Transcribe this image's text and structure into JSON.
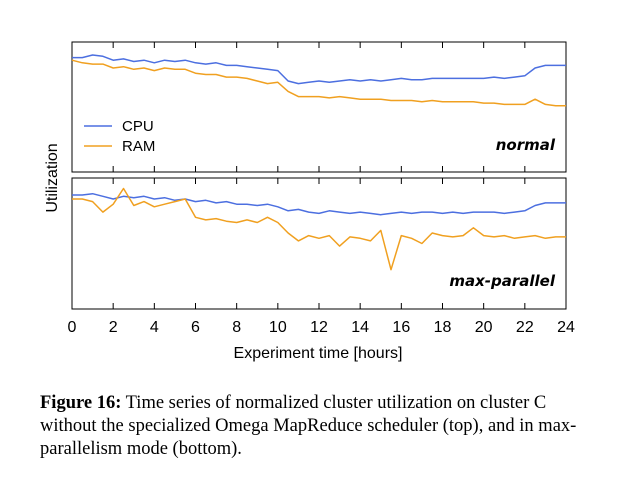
{
  "chart_data": {
    "type": "line",
    "x": [
      0,
      0.5,
      1,
      1.5,
      2,
      2.5,
      3,
      3.5,
      4,
      4.5,
      5,
      5.5,
      6,
      6.5,
      7,
      7.5,
      8,
      8.5,
      9,
      9.5,
      10,
      10.5,
      11,
      11.5,
      12,
      12.5,
      13,
      13.5,
      14,
      14.5,
      15,
      15.5,
      16,
      16.5,
      17,
      17.5,
      18,
      18.5,
      19,
      19.5,
      20,
      20.5,
      21,
      21.5,
      22,
      22.5,
      23,
      23.5,
      24
    ],
    "xlabel": "Experiment time [hours]",
    "ylabel": "Utilization",
    "xticks": [
      "0",
      "2",
      "4",
      "6",
      "8",
      "10",
      "12",
      "14",
      "16",
      "18",
      "20",
      "22",
      "24"
    ],
    "xlim": [
      0,
      24
    ],
    "ylim": [
      0,
      1
    ],
    "legend": {
      "location": "left",
      "entries": [
        "CPU",
        "RAM"
      ]
    },
    "colors": {
      "CPU": "#4c6fe0",
      "RAM": "#f0a020"
    },
    "panels": [
      {
        "label": "normal",
        "series": [
          {
            "name": "CPU",
            "values": [
              0.88,
              0.88,
              0.9,
              0.89,
              0.86,
              0.87,
              0.85,
              0.86,
              0.84,
              0.86,
              0.85,
              0.86,
              0.84,
              0.83,
              0.84,
              0.82,
              0.82,
              0.81,
              0.8,
              0.79,
              0.78,
              0.7,
              0.68,
              0.69,
              0.7,
              0.69,
              0.7,
              0.71,
              0.7,
              0.71,
              0.7,
              0.71,
              0.72,
              0.71,
              0.71,
              0.72,
              0.72,
              0.72,
              0.72,
              0.72,
              0.72,
              0.73,
              0.72,
              0.73,
              0.74,
              0.8,
              0.82,
              0.82,
              0.82
            ]
          },
          {
            "name": "RAM",
            "values": [
              0.86,
              0.84,
              0.83,
              0.83,
              0.8,
              0.81,
              0.79,
              0.8,
              0.78,
              0.8,
              0.79,
              0.79,
              0.76,
              0.75,
              0.75,
              0.73,
              0.73,
              0.72,
              0.7,
              0.68,
              0.69,
              0.62,
              0.58,
              0.58,
              0.58,
              0.57,
              0.58,
              0.57,
              0.56,
              0.56,
              0.56,
              0.55,
              0.55,
              0.55,
              0.54,
              0.55,
              0.54,
              0.54,
              0.54,
              0.54,
              0.53,
              0.53,
              0.52,
              0.52,
              0.52,
              0.56,
              0.52,
              0.51,
              0.51
            ]
          }
        ]
      },
      {
        "label": "max-parallel",
        "series": [
          {
            "name": "CPU",
            "values": [
              0.87,
              0.87,
              0.88,
              0.86,
              0.84,
              0.86,
              0.85,
              0.86,
              0.84,
              0.85,
              0.83,
              0.84,
              0.82,
              0.83,
              0.81,
              0.82,
              0.8,
              0.8,
              0.79,
              0.8,
              0.78,
              0.75,
              0.76,
              0.74,
              0.73,
              0.75,
              0.74,
              0.73,
              0.74,
              0.73,
              0.72,
              0.73,
              0.74,
              0.73,
              0.74,
              0.74,
              0.73,
              0.74,
              0.73,
              0.74,
              0.74,
              0.74,
              0.73,
              0.74,
              0.75,
              0.79,
              0.81,
              0.81,
              0.81
            ]
          },
          {
            "name": "RAM",
            "values": [
              0.84,
              0.84,
              0.82,
              0.74,
              0.8,
              0.92,
              0.79,
              0.82,
              0.78,
              0.8,
              0.82,
              0.84,
              0.7,
              0.68,
              0.69,
              0.67,
              0.66,
              0.68,
              0.66,
              0.7,
              0.66,
              0.58,
              0.52,
              0.56,
              0.54,
              0.56,
              0.48,
              0.55,
              0.54,
              0.52,
              0.6,
              0.3,
              0.56,
              0.54,
              0.5,
              0.58,
              0.56,
              0.55,
              0.56,
              0.62,
              0.56,
              0.55,
              0.56,
              0.54,
              0.55,
              0.56,
              0.54,
              0.55,
              0.55
            ]
          }
        ]
      }
    ]
  },
  "caption": {
    "label": "Figure 16:",
    "text": " Time series of normalized cluster utilization on cluster C without the specialized Omega MapReduce scheduler (top), and in max-parallelism mode (bottom)."
  }
}
